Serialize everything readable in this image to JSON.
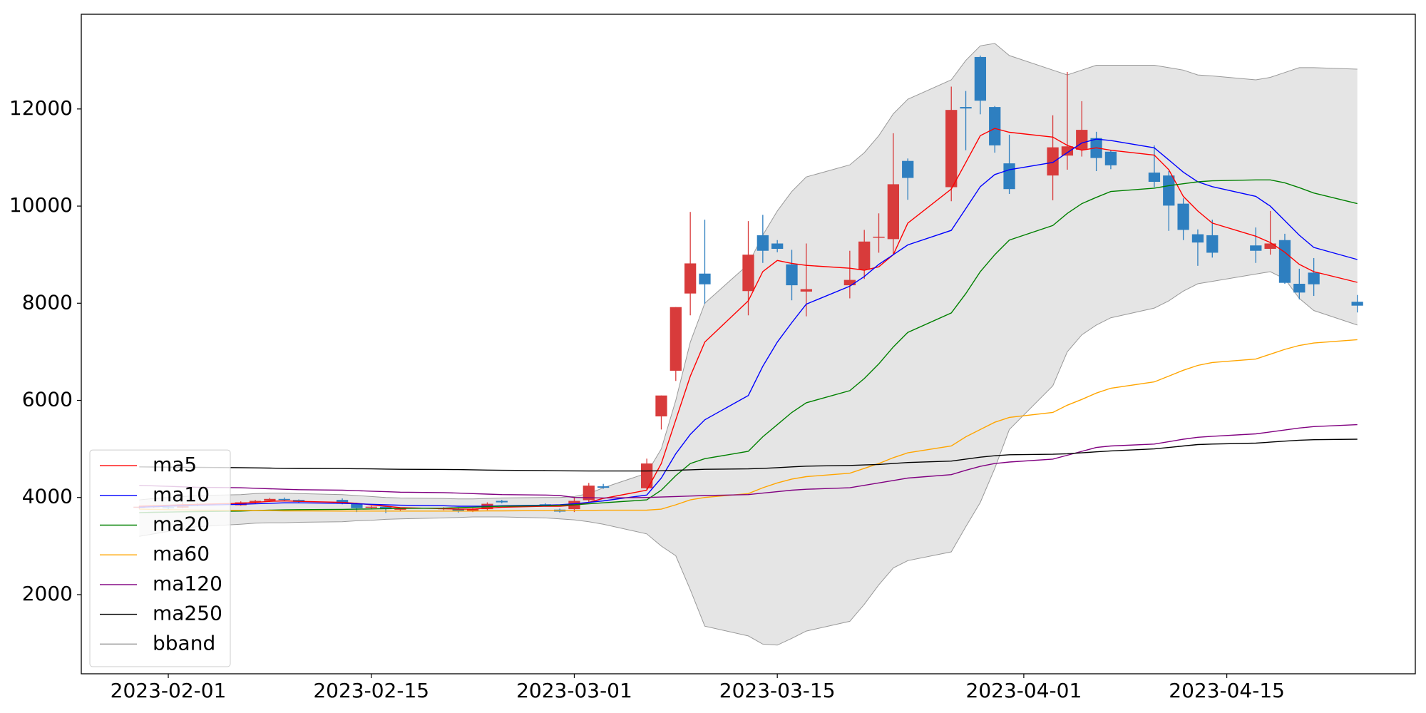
{
  "chart_data": {
    "type": "candlestick",
    "x": [
      "2023-01-30",
      "2023-01-31",
      "2023-02-01",
      "2023-02-02",
      "2023-02-03",
      "2023-02-06",
      "2023-02-07",
      "2023-02-08",
      "2023-02-09",
      "2023-02-10",
      "2023-02-13",
      "2023-02-14",
      "2023-02-15",
      "2023-02-16",
      "2023-02-17",
      "2023-02-20",
      "2023-02-21",
      "2023-02-22",
      "2023-02-23",
      "2023-02-24",
      "2023-02-27",
      "2023-02-28",
      "2023-03-01",
      "2023-03-02",
      "2023-03-03",
      "2023-03-06",
      "2023-03-07",
      "2023-03-08",
      "2023-03-09",
      "2023-03-10",
      "2023-03-13",
      "2023-03-14",
      "2023-03-15",
      "2023-03-16",
      "2023-03-17",
      "2023-03-20",
      "2023-03-21",
      "2023-03-22",
      "2023-03-23",
      "2023-03-24",
      "2023-03-27",
      "2023-03-28",
      "2023-03-29",
      "2023-03-30",
      "2023-03-31",
      "2023-04-03",
      "2023-04-04",
      "2023-04-05",
      "2023-04-06",
      "2023-04-07",
      "2023-04-10",
      "2023-04-11",
      "2023-04-12",
      "2023-04-13",
      "2023-04-14",
      "2023-04-17",
      "2023-04-18",
      "2023-04-19",
      "2023-04-20",
      "2023-04-21",
      "2023-04-24"
    ],
    "open": [
      3790,
      3810,
      3800,
      3790,
      3860,
      3840,
      3900,
      3930,
      3970,
      3950,
      3950,
      3880,
      3790,
      3810,
      3760,
      3770,
      3760,
      3720,
      3760,
      3930,
      3860,
      3750,
      3760,
      3945,
      4230,
      4190,
      5670,
      6610,
      8200,
      8610,
      8250,
      9400,
      9230,
      8800,
      8240,
      8370,
      8690,
      9350,
      9320,
      10930,
      10390,
      12040,
      13070,
      12040,
      10880,
      10630,
      11040,
      11160,
      11400,
      11120,
      10690,
      10630,
      10050,
      9420,
      9400,
      9190,
      9120,
      9300,
      8400,
      8630,
      8030
    ],
    "high": [
      3830,
      3840,
      3830,
      3900,
      3880,
      3920,
      3950,
      3990,
      4000,
      3960,
      3980,
      3890,
      3830,
      3820,
      3790,
      3800,
      3780,
      3780,
      3900,
      3950,
      3880,
      3770,
      4000,
      4300,
      4280,
      4800,
      6100,
      7920,
      9880,
      9720,
      9690,
      9820,
      9300,
      9100,
      9230,
      9080,
      9510,
      9850,
      11500,
      10980,
      12460,
      12370,
      13100,
      12060,
      11470,
      11870,
      12760,
      12160,
      11530,
      11150,
      11250,
      10720,
      10160,
      9520,
      9720,
      9560,
      9900,
      9430,
      8710,
      8930,
      8170
    ],
    "low": [
      3770,
      3790,
      3760,
      3780,
      3820,
      3830,
      3880,
      3910,
      3930,
      3890,
      3860,
      3700,
      3760,
      3680,
      3720,
      3740,
      3690,
      3700,
      3740,
      3880,
      3820,
      3690,
      3700,
      3900,
      4180,
      4150,
      5400,
      6400,
      7750,
      7990,
      7750,
      8830,
      9050,
      8060,
      7730,
      8100,
      8500,
      9040,
      9000,
      10130,
      10100,
      11150,
      11890,
      11100,
      10250,
      10120,
      10750,
      11020,
      10720,
      10760,
      10390,
      9490,
      9300,
      8770,
      8940,
      8830,
      9000,
      8400,
      8080,
      8150,
      7810
    ],
    "close": [
      3810,
      3820,
      3790,
      3860,
      3840,
      3900,
      3930,
      3970,
      3950,
      3910,
      3880,
      3780,
      3810,
      3760,
      3770,
      3780,
      3720,
      3760,
      3870,
      3900,
      3830,
      3710,
      3930,
      4245,
      4200,
      4700,
      6100,
      7920,
      8820,
      8390,
      9000,
      9080,
      9120,
      8370,
      8290,
      8480,
      9270,
      9370,
      10450,
      10580,
      11980,
      12010,
      12170,
      11250,
      10350,
      11210,
      11230,
      11570,
      10990,
      10840,
      10500,
      10010,
      9510,
      9250,
      9040,
      9080,
      9230,
      8420,
      8220,
      8390,
      7950
    ],
    "up_color": "#d83b3b",
    "down_color": "#2e7fc0",
    "lines": [
      {
        "name": "ma5",
        "color": "#ff0000",
        "values": [
          3820,
          3830,
          3840,
          3850,
          3860,
          3880,
          3900,
          3920,
          3930,
          3920,
          3900,
          3880,
          3850,
          3820,
          3790,
          3770,
          3760,
          3760,
          3780,
          3800,
          3820,
          3820,
          3840,
          3900,
          3980,
          4150,
          4700,
          5600,
          6500,
          7200,
          8050,
          8650,
          8880,
          8820,
          8780,
          8720,
          8680,
          8750,
          9000,
          9650,
          10350,
          10900,
          11450,
          11600,
          11520,
          11420,
          11250,
          11150,
          11200,
          11150,
          11050,
          10750,
          10200,
          9900,
          9650,
          9380,
          9250,
          9050,
          8800,
          8650,
          8430
        ]
      },
      {
        "name": "ma10",
        "color": "#0000ff",
        "values": [
          3800,
          3810,
          3820,
          3830,
          3840,
          3860,
          3870,
          3880,
          3890,
          3890,
          3880,
          3870,
          3860,
          3850,
          3840,
          3830,
          3820,
          3820,
          3820,
          3830,
          3840,
          3850,
          3870,
          3900,
          3930,
          4050,
          4400,
          4900,
          5300,
          5600,
          6100,
          6700,
          7200,
          7600,
          7980,
          8350,
          8550,
          8800,
          9000,
          9200,
          9500,
          9950,
          10400,
          10650,
          10750,
          10900,
          11100,
          11300,
          11380,
          11350,
          11200,
          10950,
          10700,
          10500,
          10400,
          10200,
          10000,
          9700,
          9400,
          9150,
          8900
        ]
      },
      {
        "name": "ma20",
        "color": "#008000",
        "values": [
          3690,
          3695,
          3700,
          3705,
          3710,
          3720,
          3730,
          3740,
          3745,
          3750,
          3755,
          3760,
          3765,
          3770,
          3775,
          3780,
          3790,
          3800,
          3810,
          3820,
          3830,
          3840,
          3850,
          3870,
          3890,
          3950,
          4150,
          4450,
          4700,
          4800,
          4950,
          5250,
          5500,
          5750,
          5950,
          6200,
          6450,
          6750,
          7100,
          7400,
          7800,
          8200,
          8650,
          9000,
          9300,
          9600,
          9850,
          10050,
          10180,
          10300,
          10370,
          10420,
          10460,
          10500,
          10520,
          10540,
          10540,
          10480,
          10380,
          10270,
          10050
        ]
      },
      {
        "name": "ma60",
        "color": "#ffa500",
        "values": [
          3760,
          3755,
          3750,
          3745,
          3740,
          3735,
          3730,
          3730,
          3725,
          3725,
          3720,
          3720,
          3720,
          3720,
          3720,
          3720,
          3720,
          3720,
          3725,
          3725,
          3730,
          3730,
          3735,
          3735,
          3738,
          3740,
          3760,
          3850,
          3950,
          4000,
          4080,
          4200,
          4300,
          4380,
          4430,
          4500,
          4600,
          4700,
          4820,
          4920,
          5060,
          5250,
          5400,
          5550,
          5650,
          5750,
          5900,
          6020,
          6150,
          6250,
          6380,
          6500,
          6620,
          6720,
          6780,
          6850,
          6950,
          7050,
          7130,
          7180,
          7250
        ]
      },
      {
        "name": "ma120",
        "color": "#800080",
        "values": [
          4250,
          4240,
          4230,
          4220,
          4210,
          4200,
          4190,
          4180,
          4170,
          4160,
          4150,
          4140,
          4130,
          4120,
          4110,
          4100,
          4090,
          4080,
          4070,
          4060,
          4050,
          4040,
          4000,
          3995,
          3990,
          4000,
          4010,
          4020,
          4030,
          4040,
          4060,
          4090,
          4120,
          4150,
          4170,
          4200,
          4250,
          4300,
          4350,
          4400,
          4470,
          4560,
          4640,
          4700,
          4730,
          4790,
          4870,
          4950,
          5030,
          5060,
          5100,
          5150,
          5200,
          5240,
          5260,
          5310,
          5350,
          5390,
          5430,
          5460,
          5500
        ]
      },
      {
        "name": "ma250",
        "color": "#000000",
        "values": [
          4630,
          4628,
          4625,
          4622,
          4620,
          4615,
          4610,
          4605,
          4600,
          4598,
          4595,
          4592,
          4590,
          4585,
          4580,
          4578,
          4575,
          4570,
          4565,
          4560,
          4555,
          4550,
          4548,
          4546,
          4545,
          4545,
          4550,
          4560,
          4570,
          4580,
          4590,
          4600,
          4615,
          4630,
          4645,
          4660,
          4670,
          4680,
          4700,
          4720,
          4750,
          4790,
          4830,
          4860,
          4880,
          4890,
          4900,
          4920,
          4940,
          4960,
          5000,
          5030,
          5060,
          5090,
          5100,
          5120,
          5140,
          5160,
          5180,
          5190,
          5200
        ]
      }
    ],
    "band": {
      "name": "bband",
      "color": "#999999",
      "fill": "#e5e5e5",
      "upper": [
        3950,
        3980,
        4000,
        4020,
        4040,
        4060,
        4080,
        4090,
        4090,
        4080,
        4060,
        4040,
        4020,
        4000,
        3990,
        3980,
        3970,
        3970,
        3980,
        3990,
        4000,
        4000,
        4020,
        4080,
        4200,
        4500,
        5000,
        6000,
        7200,
        8000,
        8800,
        9400,
        9900,
        10300,
        10600,
        10850,
        11100,
        11450,
        11900,
        12200,
        12600,
        13000,
        13300,
        13350,
        13100,
        12800,
        12700,
        12800,
        12900,
        12900,
        12900,
        12850,
        12800,
        12700,
        12680,
        12600,
        12650,
        12750,
        12850,
        12850,
        12820
      ],
      "lower": [
        3200,
        3250,
        3300,
        3350,
        3400,
        3450,
        3470,
        3480,
        3480,
        3490,
        3500,
        3520,
        3530,
        3550,
        3560,
        3580,
        3590,
        3600,
        3600,
        3600,
        3580,
        3560,
        3540,
        3500,
        3450,
        3250,
        3000,
        2800,
        2100,
        1350,
        1150,
        980,
        960,
        1100,
        1250,
        1450,
        1800,
        2200,
        2550,
        2700,
        2880,
        3400,
        3900,
        4600,
        5400,
        6300,
        7000,
        7350,
        7550,
        7700,
        7900,
        8050,
        8250,
        8400,
        8450,
        8600,
        8650,
        8500,
        8100,
        7850,
        7550
      ]
    },
    "xlim": [
      "2023-01-26",
      "2023-04-28"
    ],
    "ylim": [
      370,
      13950
    ],
    "xticks": [
      "2023-02-01",
      "2023-02-15",
      "2023-03-01",
      "2023-03-15",
      "2023-04-01",
      "2023-04-15"
    ],
    "yticks": [
      2000,
      4000,
      6000,
      8000,
      10000,
      12000
    ],
    "legend": "lower left"
  }
}
